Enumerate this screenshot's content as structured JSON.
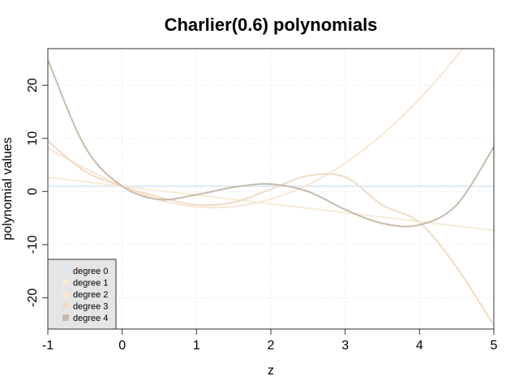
{
  "chart_data": {
    "type": "line",
    "title": "Charlier(0.6) polynomials",
    "xlabel": "z",
    "ylabel": "polynomial values",
    "xlim": [
      -1,
      5
    ],
    "ylim": [
      -25.9,
      26.9
    ],
    "x_ticks": [
      -1,
      0,
      1,
      2,
      3,
      4,
      5
    ],
    "y_ticks": [
      -20,
      -10,
      0,
      10,
      20
    ],
    "grid": true,
    "legend_position": "bottom-left",
    "x": [
      -1,
      -0.5,
      0,
      0.5,
      1,
      1.5,
      2,
      2.5,
      3,
      3.5,
      4,
      4.5,
      5
    ],
    "series": [
      {
        "name": "degree 0",
        "color": "#dde9f5",
        "values": [
          1,
          1,
          1,
          1,
          1,
          1,
          1,
          1,
          1,
          1,
          1,
          1,
          1
        ]
      },
      {
        "name": "degree 1",
        "color": "#f5ecd6",
        "values": [
          2.667,
          1.833,
          1.0,
          0.167,
          -0.667,
          -1.5,
          -2.333,
          -3.167,
          -4.0,
          -4.833,
          -5.667,
          -6.5,
          -7.333
        ]
      },
      {
        "name": "degree 2",
        "color": "#f9e6d2",
        "values": [
          8.111,
          4.361,
          1.0,
          -1.611,
          -2.889,
          -2.833,
          -1.444,
          1.278,
          5.333,
          10.722,
          17.444,
          25.5,
          34.889
        ]
      },
      {
        "name": "degree 3",
        "color": "#efdcc6",
        "values": [
          9.52,
          3.78,
          1.0,
          -1.07,
          -2.52,
          -2.06,
          0.43,
          2.95,
          2.72,
          -2.55,
          -5.85,
          -14.3,
          -25.2
        ]
      },
      {
        "name": "degree 4",
        "color": "#c7bbaa",
        "values": [
          24.8,
          8.4,
          1.0,
          -1.5,
          -0.6,
          0.8,
          1.4,
          0.0,
          -3.4,
          -6.0,
          -6.3,
          -2.5,
          8.4
        ]
      }
    ]
  }
}
